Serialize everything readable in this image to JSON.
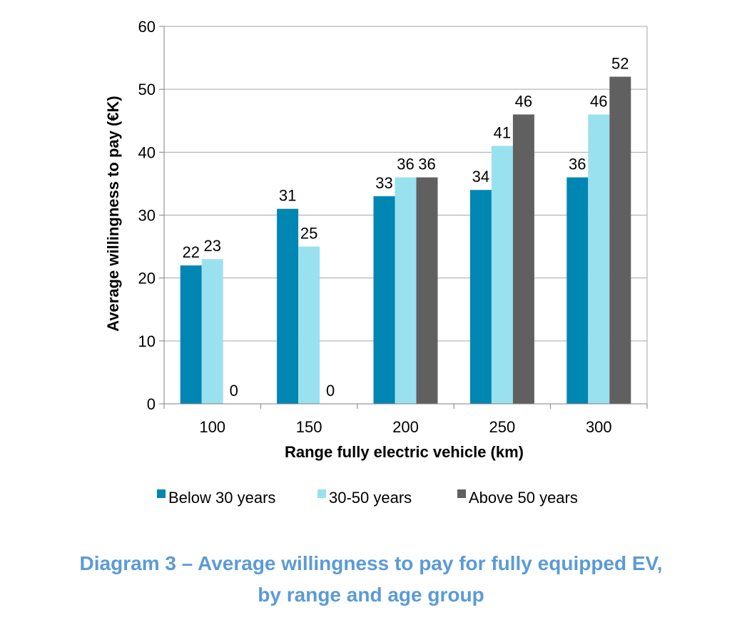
{
  "chart_data": {
    "type": "bar",
    "categories": [
      "100",
      "150",
      "200",
      "250",
      "300"
    ],
    "series": [
      {
        "name": "Below 30 years",
        "values": [
          22,
          31,
          33,
          34,
          36
        ],
        "color": "#0086b3"
      },
      {
        "name": "30-50 years",
        "values": [
          23,
          25,
          36,
          41,
          46
        ],
        "color": "#99e1ef"
      },
      {
        "name": "Above 50 years",
        "values": [
          0,
          0,
          36,
          46,
          52
        ],
        "color": "#606060"
      }
    ],
    "xlabel": "Range fully electric vehicle (km)",
    "ylabel": "Average willingness to pay (€K)",
    "ylim": [
      0,
      60
    ],
    "yticks": [
      0,
      10,
      20,
      30,
      40,
      50,
      60
    ],
    "grid": true,
    "legend_position": "bottom"
  },
  "caption": {
    "line1": "Diagram 3 – Average willingness to pay for fully equipped EV,",
    "line2": "by range and age group"
  }
}
